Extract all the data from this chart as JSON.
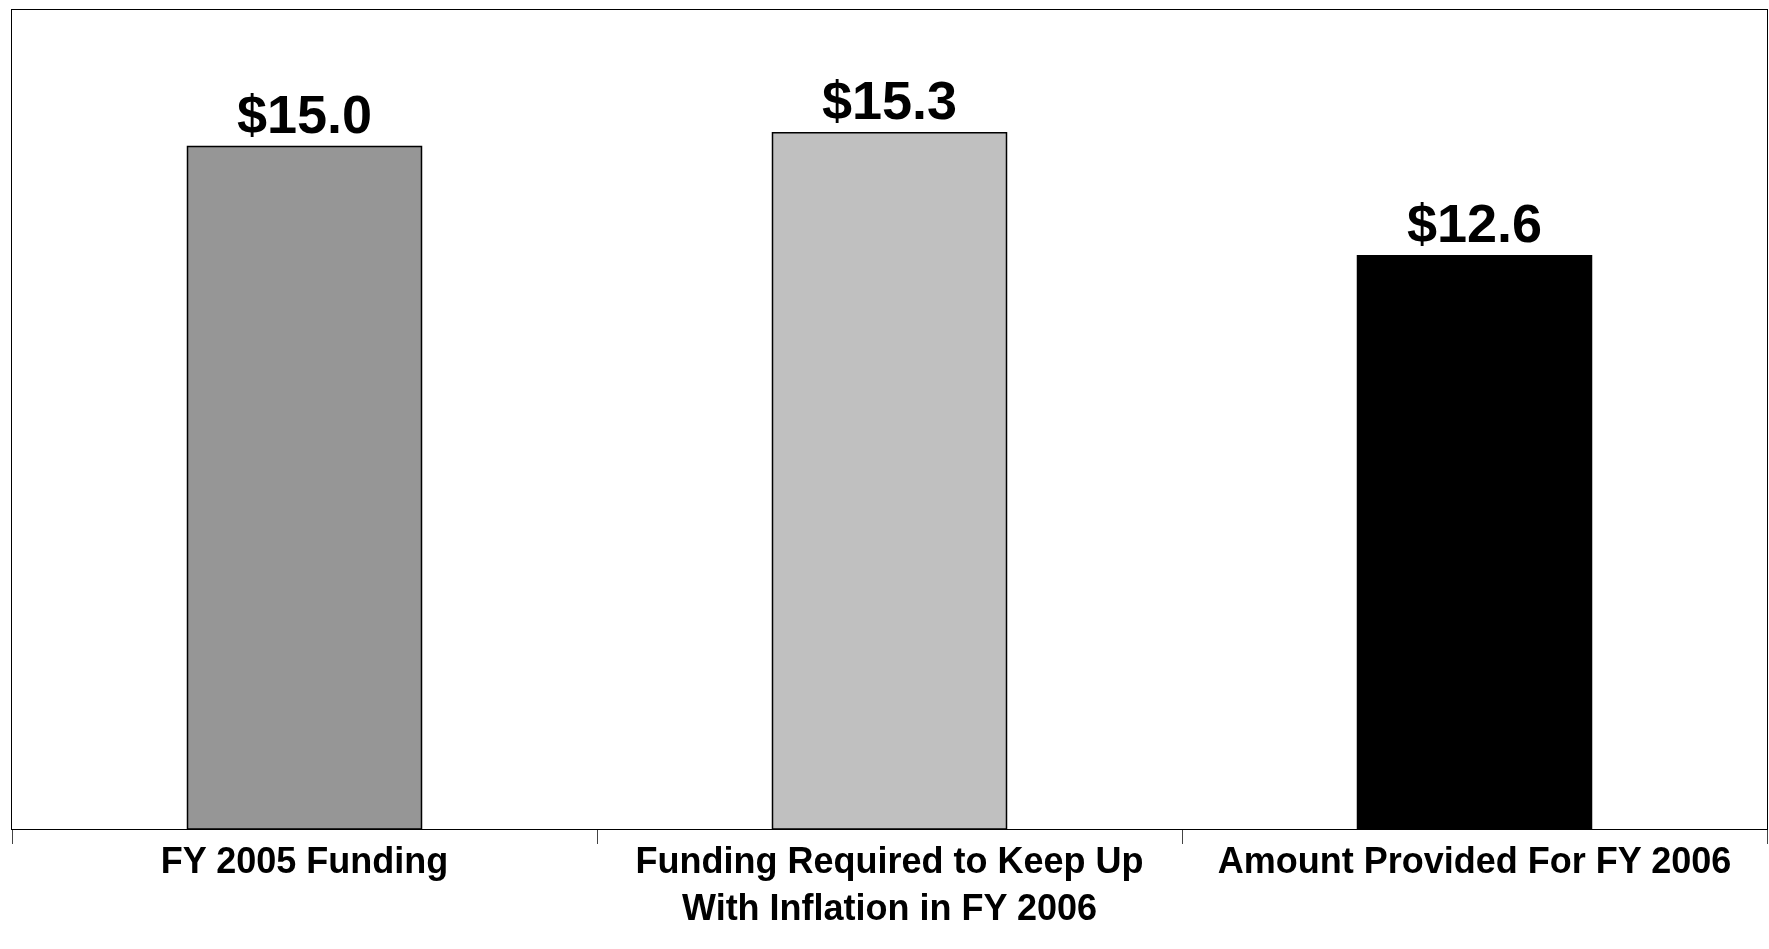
{
  "chart_data": {
    "type": "bar",
    "categories": [
      "FY 2005 Funding",
      "Funding Required to Keep Up With Inflation in FY 2006",
      "Amount Provided For FY 2006"
    ],
    "values": [
      15.0,
      15.3,
      12.6
    ],
    "colors": [
      "#969696",
      "#c0c0c0",
      "#000000"
    ],
    "value_labels": [
      "$15.0",
      "$15.3",
      "$12.6"
    ],
    "ylim": [
      0,
      18
    ],
    "tick_labels": "x",
    "legend": false
  }
}
